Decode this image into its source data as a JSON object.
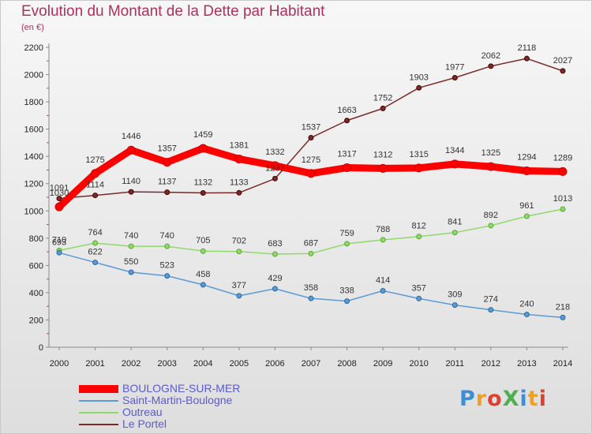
{
  "header": {
    "title": "Evolution du Montant de la Dette par Habitant",
    "subtitle": "(en €)"
  },
  "logo": {
    "text": "ProXiti",
    "letter_colors": [
      "#3a8fd6",
      "#f0a020",
      "#e04030",
      "#4caf50",
      "#3a8fd6",
      "#f0a020",
      "#e04030"
    ]
  },
  "chart_data": {
    "type": "line",
    "x": [
      "2000",
      "2001",
      "2002",
      "2003",
      "2004",
      "2005",
      "2006",
      "2007",
      "2008",
      "2009",
      "2010",
      "2011",
      "2012",
      "2013",
      "2014"
    ],
    "ylim": [
      0,
      2200
    ],
    "yticks": [
      0,
      200,
      400,
      600,
      800,
      1000,
      1200,
      1400,
      1600,
      1800,
      2000,
      2200
    ],
    "grid": false,
    "legend_position": "bottom-left",
    "series": [
      {
        "name": "BOULOGNE-SUR-MER",
        "color": "#ff0000",
        "values": [
          1030,
          1275,
          1446,
          1357,
          1459,
          1381,
          1332,
          1275,
          1317,
          1312,
          1315,
          1344,
          1325,
          1294,
          1289
        ],
        "labels": [
          "1030",
          "1275",
          "1446",
          "1357",
          "1459",
          "1381",
          "1332",
          "1275",
          "1317",
          "1312",
          "1315",
          "1344",
          "1325",
          "1294",
          "1289"
        ]
      },
      {
        "name": "Saint-Martin-Boulogne",
        "color": "#5b9bd5",
        "values": [
          693,
          622,
          550,
          523,
          458,
          377,
          429,
          358,
          338,
          414,
          357,
          309,
          274,
          240,
          218
        ],
        "labels": [
          "693",
          "622",
          "550",
          "523",
          "458",
          "377",
          "429",
          "358",
          "338",
          "414",
          "357",
          "309",
          "274",
          "240",
          "218"
        ]
      },
      {
        "name": "Outreau",
        "color": "#8fd96a",
        "values": [
          710,
          764,
          740,
          740,
          705,
          702,
          683,
          687,
          759,
          788,
          812,
          841,
          892,
          961,
          1013
        ],
        "labels": [
          "710",
          "764",
          "740",
          "740",
          "705",
          "702",
          "683",
          "687",
          "759",
          "788",
          "812",
          "841",
          "892",
          "961",
          "1013"
        ]
      },
      {
        "name": "Le Portel",
        "color": "#7a2a2a",
        "values": [
          1091,
          1114,
          1140,
          1137,
          1132,
          1133,
          1237,
          1537,
          1663,
          1752,
          1903,
          1977,
          2062,
          2118,
          2027
        ],
        "labels": [
          "1091",
          "1114",
          "1140",
          "1137",
          "1132",
          "1133",
          "1237",
          "1537",
          "1663",
          "1752",
          "1903",
          "1977",
          "2062",
          "2118",
          "2027"
        ]
      }
    ]
  }
}
